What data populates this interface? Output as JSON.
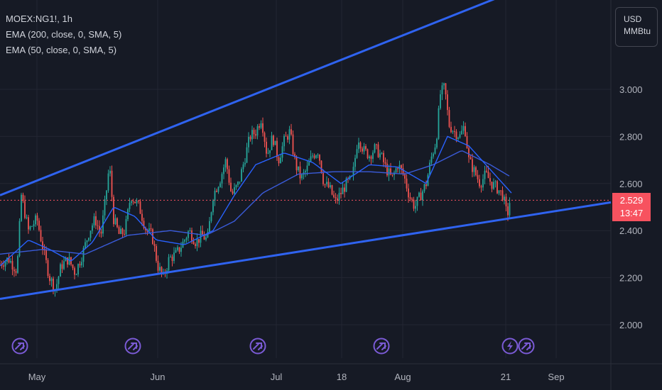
{
  "legend": {
    "symbol": "MOEX:NG1!, 1h",
    "ema200": "EMA (200, close, 0, SMA, 5)",
    "ema50": "EMA (50, close, 0, SMA, 5)"
  },
  "unit": {
    "currency": "USD",
    "unit": "MMBtu"
  },
  "last_price": {
    "value": "2.529",
    "countdown": "13:47",
    "color": "#f7525f"
  },
  "colors": {
    "background": "#161a25",
    "up": "#26a69a",
    "down": "#ef5350",
    "ema": "#2962ff",
    "channel": "#2f63f0",
    "event_icon": "#7b5bd6"
  },
  "event_icons": [
    "arrow-event-icon",
    "arrow-event-icon",
    "arrow-event-icon",
    "arrow-event-icon",
    "lightning-event-icon",
    "arrow-event-icon"
  ],
  "chart_data": {
    "type": "candlestick",
    "x_ticks": [
      "May",
      "Jun",
      "Jul",
      "18",
      "Aug",
      "21",
      "Sep"
    ],
    "y_ticks": [
      "2.000",
      "2.200",
      "2.400",
      "2.600",
      "2.800",
      "3.000"
    ],
    "ylim": [
      1.95,
      3.25
    ],
    "last_value": 2.529,
    "price_path": [
      [
        0,
        2.26
      ],
      [
        12,
        2.28
      ],
      [
        24,
        2.23
      ],
      [
        30,
        2.55
      ],
      [
        40,
        2.4
      ],
      [
        52,
        2.45
      ],
      [
        62,
        2.3
      ],
      [
        70,
        2.2
      ],
      [
        78,
        2.15
      ],
      [
        86,
        2.25
      ],
      [
        96,
        2.28
      ],
      [
        106,
        2.22
      ],
      [
        116,
        2.3
      ],
      [
        126,
        2.4
      ],
      [
        134,
        2.45
      ],
      [
        142,
        2.38
      ],
      [
        148,
        2.52
      ],
      [
        154,
        2.68
      ],
      [
        160,
        2.45
      ],
      [
        168,
        2.38
      ],
      [
        176,
        2.4
      ],
      [
        184,
        2.55
      ],
      [
        196,
        2.5
      ],
      [
        206,
        2.4
      ],
      [
        214,
        2.38
      ],
      [
        222,
        2.25
      ],
      [
        230,
        2.2
      ],
      [
        238,
        2.28
      ],
      [
        248,
        2.3
      ],
      [
        258,
        2.35
      ],
      [
        266,
        2.4
      ],
      [
        276,
        2.35
      ],
      [
        284,
        2.38
      ],
      [
        292,
        2.36
      ],
      [
        300,
        2.55
      ],
      [
        310,
        2.62
      ],
      [
        318,
        2.7
      ],
      [
        326,
        2.55
      ],
      [
        336,
        2.6
      ],
      [
        344,
        2.7
      ],
      [
        352,
        2.8
      ],
      [
        360,
        2.82
      ],
      [
        368,
        2.88
      ],
      [
        376,
        2.72
      ],
      [
        384,
        2.8
      ],
      [
        392,
        2.7
      ],
      [
        400,
        2.78
      ],
      [
        408,
        2.82
      ],
      [
        416,
        2.68
      ],
      [
        424,
        2.62
      ],
      [
        432,
        2.66
      ],
      [
        440,
        2.72
      ],
      [
        448,
        2.74
      ],
      [
        456,
        2.6
      ],
      [
        464,
        2.58
      ],
      [
        472,
        2.52
      ],
      [
        480,
        2.56
      ],
      [
        488,
        2.6
      ],
      [
        496,
        2.62
      ],
      [
        504,
        2.8
      ],
      [
        512,
        2.74
      ],
      [
        520,
        2.72
      ],
      [
        528,
        2.75
      ],
      [
        536,
        2.72
      ],
      [
        544,
        2.66
      ],
      [
        552,
        2.62
      ],
      [
        560,
        2.68
      ],
      [
        568,
        2.64
      ],
      [
        576,
        2.55
      ],
      [
        584,
        2.5
      ],
      [
        592,
        2.55
      ],
      [
        600,
        2.6
      ],
      [
        608,
        2.72
      ],
      [
        614,
        2.78
      ],
      [
        620,
        2.98
      ],
      [
        626,
        3.01
      ],
      [
        632,
        2.85
      ],
      [
        640,
        2.82
      ],
      [
        648,
        2.8
      ],
      [
        654,
        2.85
      ],
      [
        660,
        2.7
      ],
      [
        668,
        2.65
      ],
      [
        676,
        2.6
      ],
      [
        684,
        2.64
      ],
      [
        692,
        2.6
      ],
      [
        700,
        2.58
      ],
      [
        708,
        2.55
      ],
      [
        714,
        2.46
      ],
      [
        718,
        2.53
      ]
    ],
    "ema50_path": [
      [
        0,
        2.25
      ],
      [
        40,
        2.36
      ],
      [
        70,
        2.32
      ],
      [
        100,
        2.27
      ],
      [
        130,
        2.35
      ],
      [
        160,
        2.5
      ],
      [
        190,
        2.46
      ],
      [
        220,
        2.36
      ],
      [
        260,
        2.34
      ],
      [
        300,
        2.4
      ],
      [
        330,
        2.55
      ],
      [
        360,
        2.68
      ],
      [
        400,
        2.73
      ],
      [
        440,
        2.69
      ],
      [
        480,
        2.6
      ],
      [
        520,
        2.68
      ],
      [
        560,
        2.67
      ],
      [
        600,
        2.6
      ],
      [
        630,
        2.8
      ],
      [
        660,
        2.76
      ],
      [
        690,
        2.66
      ],
      [
        720,
        2.56
      ]
    ],
    "ema200_path": [
      [
        0,
        2.3
      ],
      [
        60,
        2.32
      ],
      [
        120,
        2.3
      ],
      [
        180,
        2.38
      ],
      [
        240,
        2.4
      ],
      [
        290,
        2.38
      ],
      [
        330,
        2.44
      ],
      [
        370,
        2.56
      ],
      [
        420,
        2.64
      ],
      [
        470,
        2.65
      ],
      [
        520,
        2.65
      ],
      [
        570,
        2.64
      ],
      [
        610,
        2.68
      ],
      [
        650,
        2.74
      ],
      [
        690,
        2.68
      ],
      [
        718,
        2.63
      ]
    ],
    "channel_upper": [
      [
        0,
        2.55
      ],
      [
        860,
        3.58
      ]
    ],
    "channel_lower": [
      [
        0,
        2.11
      ],
      [
        860,
        2.52
      ]
    ]
  }
}
